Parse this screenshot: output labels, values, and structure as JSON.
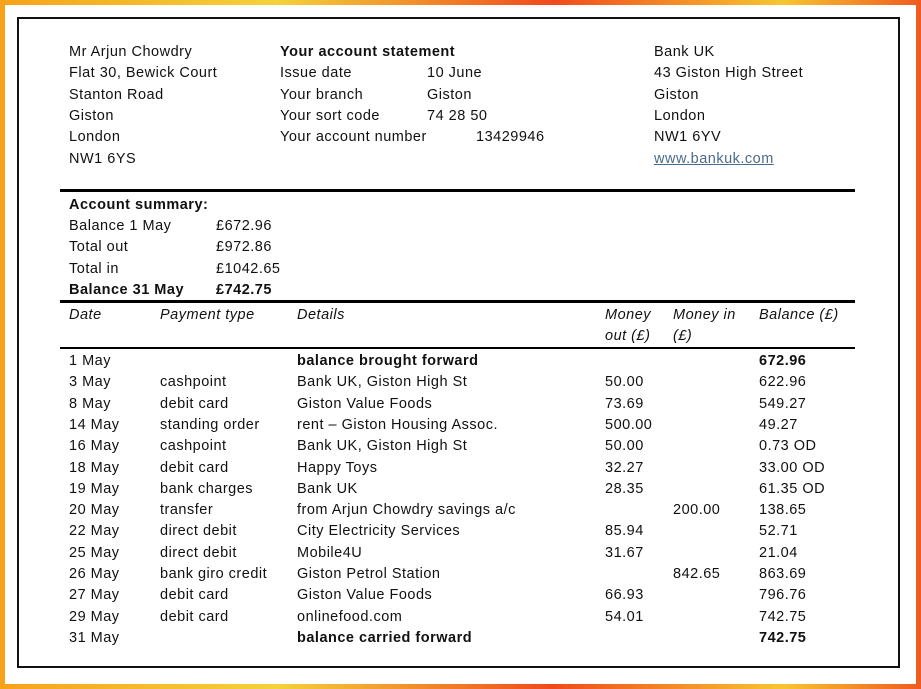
{
  "customer": [
    "Mr Arjun Chowdry",
    "Flat 30, Bewick Court",
    "Stanton Road",
    "Giston",
    "London",
    "NW1 6YS"
  ],
  "statement": {
    "title": "Your account statement",
    "rows": [
      [
        "Issue date",
        "10 June"
      ],
      [
        "Your branch",
        "Giston"
      ],
      [
        "Your sort code",
        "74 28 50"
      ],
      [
        "Your account number",
        "13429946"
      ]
    ]
  },
  "bank": {
    "lines": [
      "Bank UK",
      "43 Giston High Street",
      "Giston",
      "London",
      "NW1 6YV"
    ],
    "website": "www.bankuk.com"
  },
  "summary": {
    "title": "Account summary:",
    "rows": [
      [
        "Balance 1 May",
        "£672.96"
      ],
      [
        "Total out",
        "£972.86"
      ],
      [
        "Total in",
        "£1042.65"
      ],
      [
        "Balance 31 May",
        "£742.75"
      ]
    ]
  },
  "transactions": {
    "headers": [
      "Date",
      "Payment type",
      "Details",
      "Money out (£)",
      "Money in (£)",
      "Balance (£)"
    ],
    "rows": [
      [
        "1 May",
        null,
        "balance brought forward",
        null,
        null,
        "672.96"
      ],
      [
        "3 May",
        "cashpoint",
        "Bank UK, Giston High St",
        "50.00",
        null,
        "622.96"
      ],
      [
        "8 May",
        "debit card",
        "Giston Value Foods",
        "73.69",
        null,
        "549.27"
      ],
      [
        "14 May",
        "standing order",
        "rent – Giston Housing Assoc.",
        "500.00",
        null,
        "49.27"
      ],
      [
        "16 May",
        "cashpoint",
        "Bank UK, Giston High St",
        "50.00",
        null,
        "0.73 OD"
      ],
      [
        "18 May",
        "debit card",
        "Happy Toys",
        "32.27",
        null,
        "33.00 OD"
      ],
      [
        "19 May",
        "bank charges",
        "Bank UK",
        "28.35",
        null,
        "61.35 OD"
      ],
      [
        "20 May",
        "transfer",
        "from Arjun Chowdry savings a/c",
        null,
        "200.00",
        "138.65"
      ],
      [
        "22 May",
        "direct debit",
        "City Electricity Services",
        "85.94",
        null,
        "52.71"
      ],
      [
        "25 May",
        "direct debit",
        "Mobile4U",
        "31.67",
        null,
        "21.04"
      ],
      [
        "26 May",
        "bank giro credit",
        "Giston Petrol Station",
        null,
        "842.65",
        "863.69"
      ],
      [
        "27 May",
        "debit card",
        "Giston Value Foods",
        "66.93",
        null,
        "796.76"
      ],
      [
        "29 May",
        "debit card",
        "onlinefood.com",
        "54.01",
        null,
        "742.75"
      ],
      [
        "31 May",
        null,
        "balance carried forward",
        null,
        null,
        "742.75"
      ]
    ]
  }
}
